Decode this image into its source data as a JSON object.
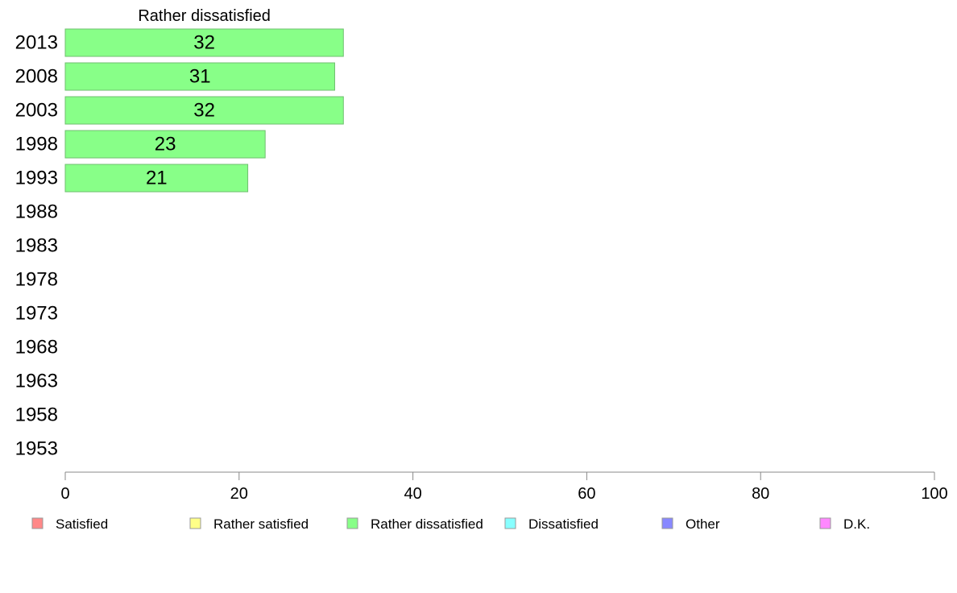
{
  "chart_data": {
    "type": "bar",
    "orientation": "horizontal",
    "title": "Rather dissatisfied",
    "categories": [
      "2013",
      "2008",
      "2003",
      "1998",
      "1993",
      "1988",
      "1983",
      "1978",
      "1973",
      "1968",
      "1963",
      "1958",
      "1953"
    ],
    "series": [
      {
        "name": "Rather dissatisfied",
        "color": "#88ff88",
        "values": [
          32,
          31,
          32,
          23,
          21,
          null,
          null,
          null,
          null,
          null,
          null,
          null,
          null
        ],
        "labels": [
          "32",
          "31",
          "32",
          "23",
          "21",
          "",
          "",
          "",
          "",
          "",
          "",
          "",
          ""
        ]
      }
    ],
    "xlim": [
      0,
      100
    ],
    "xticks": [
      "0",
      "20",
      "40",
      "60",
      "80",
      "100"
    ],
    "xtick_values": [
      0,
      20,
      40,
      60,
      80,
      100
    ],
    "grid": false,
    "legend_position": "bottom",
    "legend": [
      {
        "label": "Satisfied",
        "color": "#ff8888"
      },
      {
        "label": "Rather satisfied",
        "color": "#ffff88"
      },
      {
        "label": "Rather dissatisfied",
        "color": "#88ff88"
      },
      {
        "label": "Dissatisfied",
        "color": "#88ffff"
      },
      {
        "label": "Other",
        "color": "#8888ff"
      },
      {
        "label": "D.K.",
        "color": "#ff88ff"
      }
    ]
  }
}
